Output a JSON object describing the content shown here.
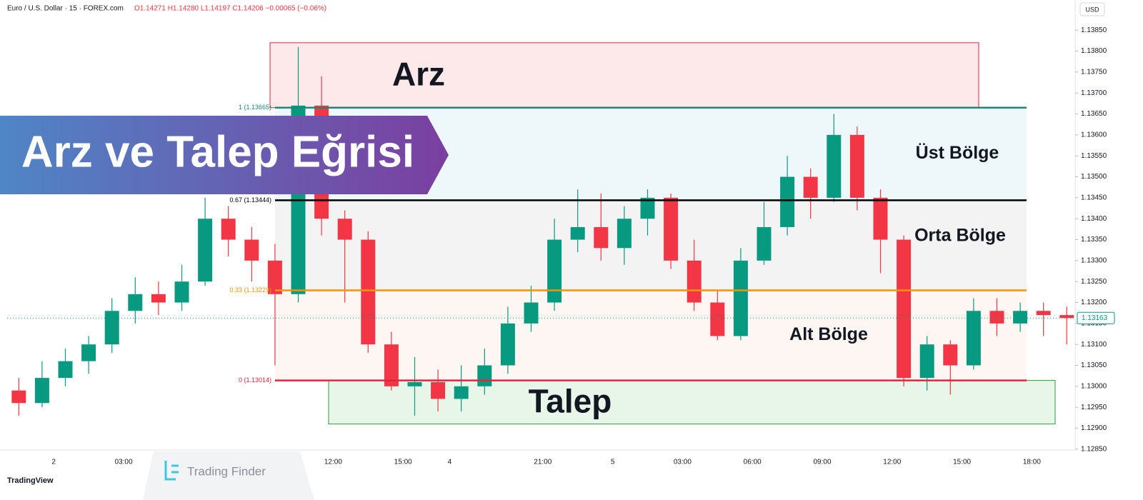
{
  "header": {
    "symbol": "Euro / U.S. Dollar · 15 · FOREX.com",
    "ohlc": "O1.14271 H1.14280 L1.14197 C1.14206 −0.00065 (−0.06%)",
    "currency": "USD"
  },
  "banner": {
    "title": "Arz ve Talep Eğrisi"
  },
  "watermark": {
    "brand": "Trading Finder",
    "platform": "TradingView"
  },
  "chart_data": {
    "type": "candlestick",
    "up_color": "#089981",
    "down_color": "#f23645",
    "categories": [
      null,
      null,
      "2",
      null,
      null,
      "03:00",
      null,
      null,
      null,
      null,
      null,
      null,
      null,
      null,
      "12:00",
      null,
      null,
      "15:00",
      null,
      "4",
      null,
      null,
      null,
      "21:00",
      null,
      null,
      "5",
      null,
      null,
      "03:00",
      null,
      null,
      "06:00",
      null,
      null,
      "09:00",
      null,
      null,
      "12:00",
      null,
      null,
      "15:00",
      null,
      null,
      "18:00",
      null
    ],
    "open": [
      1.1299,
      1.1296,
      1.1302,
      1.1306,
      1.131,
      1.1318,
      1.1322,
      1.132,
      1.1325,
      1.134,
      1.1335,
      1.133,
      1.1322,
      1.1367,
      1.134,
      1.1335,
      1.131,
      1.13,
      1.1301,
      1.1297,
      1.13,
      1.1305,
      1.1315,
      1.132,
      1.1335,
      1.1338,
      1.1333,
      1.134,
      1.1345,
      1.133,
      1.132,
      1.1312,
      1.133,
      1.1338,
      1.135,
      1.1345,
      1.136,
      1.1345,
      1.1335,
      1.1302,
      1.131,
      1.1305,
      1.1318,
      1.1315,
      1.1318,
      1.1317
    ],
    "high": [
      1.1302,
      1.1306,
      1.1309,
      1.1312,
      1.1321,
      1.1326,
      1.1325,
      1.1329,
      1.1345,
      1.1343,
      1.1338,
      1.1334,
      1.1381,
      1.1374,
      1.1342,
      1.1337,
      1.1313,
      1.1307,
      1.1304,
      1.1305,
      1.1309,
      1.1319,
      1.1324,
      1.134,
      1.1347,
      1.1346,
      1.1343,
      1.1347,
      1.1346,
      1.1335,
      1.1323,
      1.1333,
      1.1344,
      1.1355,
      1.1352,
      1.1365,
      1.1362,
      1.1347,
      1.1336,
      1.1312,
      1.1311,
      1.1321,
      1.1321,
      1.132,
      1.132,
      1.1319
    ],
    "low": [
      1.1293,
      1.1295,
      1.13,
      1.1303,
      1.1308,
      1.1315,
      1.1317,
      1.1318,
      1.1324,
      1.1331,
      1.1325,
      1.1305,
      1.132,
      1.1336,
      1.132,
      1.1308,
      1.1299,
      1.1293,
      1.1294,
      1.1294,
      1.1298,
      1.1303,
      1.1313,
      1.1318,
      1.1332,
      1.133,
      1.1329,
      1.1336,
      1.1328,
      1.1318,
      1.1311,
      1.1311,
      1.1329,
      1.1336,
      1.134,
      1.1344,
      1.1342,
      1.1327,
      1.13,
      1.1299,
      1.1298,
      1.1304,
      1.1312,
      1.1313,
      1.1312,
      1.131
    ],
    "close": [
      1.1296,
      1.1302,
      1.1306,
      1.131,
      1.1318,
      1.1322,
      1.132,
      1.1325,
      1.134,
      1.1335,
      1.133,
      1.1322,
      1.1367,
      1.134,
      1.1335,
      1.131,
      1.13,
      1.1301,
      1.1297,
      1.13,
      1.1305,
      1.1315,
      1.132,
      1.1335,
      1.1338,
      1.1333,
      1.134,
      1.1345,
      1.133,
      1.132,
      1.1312,
      1.133,
      1.1338,
      1.135,
      1.1345,
      1.136,
      1.1345,
      1.1335,
      1.1302,
      1.131,
      1.1305,
      1.1318,
      1.1315,
      1.1318,
      1.1317,
      1.13163
    ],
    "ylim": [
      1.12848,
      1.13922
    ],
    "yticks": [
      {
        "value": 1.1385,
        "label": "1.13850"
      },
      {
        "value": 1.138,
        "label": "1.13800"
      },
      {
        "value": 1.1375,
        "label": "1.13750"
      },
      {
        "value": 1.137,
        "label": "1.13700"
      },
      {
        "value": 1.1365,
        "label": "1.13650"
      },
      {
        "value": 1.136,
        "label": "1.13600"
      },
      {
        "value": 1.1355,
        "label": "1.13550"
      },
      {
        "value": 1.135,
        "label": "1.13500"
      },
      {
        "value": 1.1345,
        "label": "1.13450"
      },
      {
        "value": 1.134,
        "label": "1.13400"
      },
      {
        "value": 1.1335,
        "label": "1.13350"
      },
      {
        "value": 1.133,
        "label": "1.13300"
      },
      {
        "value": 1.1325,
        "label": "1.13250"
      },
      {
        "value": 1.132,
        "label": "1.13200"
      },
      {
        "value": 1.1315,
        "label": "1.13150"
      },
      {
        "value": 1.131,
        "label": "1.13100"
      },
      {
        "value": 1.1305,
        "label": "1.13050"
      },
      {
        "value": 1.13,
        "label": "1.13000"
      },
      {
        "value": 1.1295,
        "label": "1.12950"
      },
      {
        "value": 1.129,
        "label": "1.12900"
      },
      {
        "value": 1.1285,
        "label": "1.12850"
      }
    ],
    "last_price": {
      "value": 1.13163,
      "label": "1.13163"
    },
    "levels": [
      {
        "price": 1.13665,
        "label": "1 (1.13665)",
        "color": "#1a8a75"
      },
      {
        "price": 1.13444,
        "label": "0.67 (1.13444)",
        "color": "#000000"
      },
      {
        "price": 1.13229,
        "label": "0.33 (1.13229)",
        "color": "#f0950c"
      },
      {
        "price": 1.13014,
        "label": "0 (1.13014)",
        "color": "#e0263f"
      }
    ],
    "bands": [
      {
        "name": "Üst Bölge",
        "top": 1.13665,
        "bottom": 1.13444,
        "color": "#eef8fb"
      },
      {
        "name": "Orta Bölge",
        "top": 1.13444,
        "bottom": 1.13229,
        "color": "#f3f3f3"
      },
      {
        "name": "Alt Bölge",
        "top": 1.13229,
        "bottom": 1.13014,
        "color": "#fdf6f2"
      }
    ],
    "zones": [
      {
        "name": "Arz",
        "top": 1.1382,
        "bottom": 1.13665,
        "fill": "#fde8ea",
        "stroke": "#e0263f"
      },
      {
        "name": "Talep",
        "top": 1.13014,
        "bottom": 1.1291,
        "fill": "#e8f5e9",
        "stroke": "#2a9d3a"
      }
    ]
  }
}
